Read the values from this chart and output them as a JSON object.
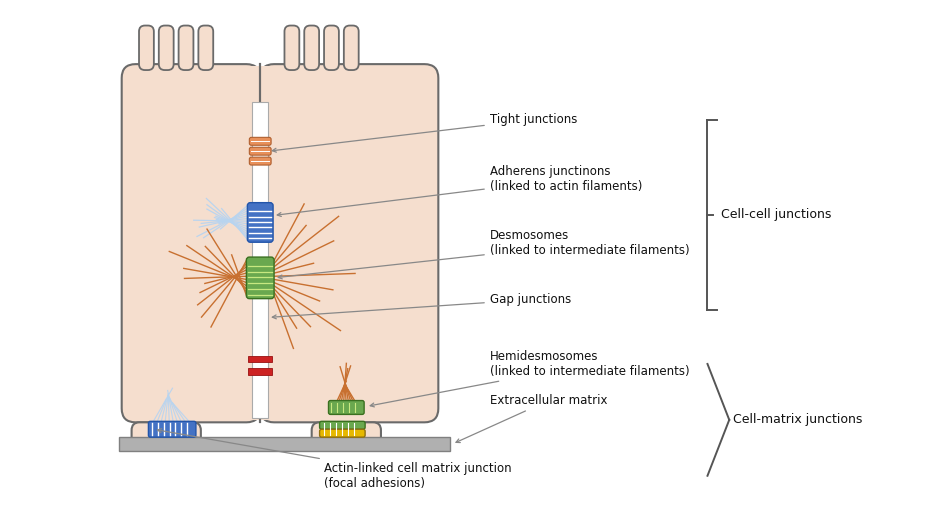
{
  "bg_color": "#ffffff",
  "cell_fill": "#f5dece",
  "cell_outline": "#6a6a6a",
  "tight_junc_color": "#e8905a",
  "blue_color": "#4472c4",
  "green_color": "#6aa84f",
  "yellow_color": "#e6b800",
  "red_color": "#cc2222",
  "actin_color": "#b8d4f0",
  "desmo_color": "#c87030",
  "gray_matrix": "#b0b0b0",
  "arrow_color": "#888888",
  "text_color": "#111111",
  "bracket_color": "#555555",
  "labels": {
    "tight": "Tight junctions",
    "adherens": "Adherens junctinons\n(linked to actin filaments)",
    "desmo": "Desmosomes\n(linked to intermediate filaments)",
    "gap": "Gap junctions",
    "hemi": "Hemidesmosomes\n(linked to intermediate filaments)",
    "matrix": "Extracellular matrix",
    "actin_focal": "Actin-linked cell matrix junction\n(focal adhesions)",
    "cell_cell": "Cell-cell junctions",
    "cell_matrix": "Cell-matrix junctions"
  }
}
